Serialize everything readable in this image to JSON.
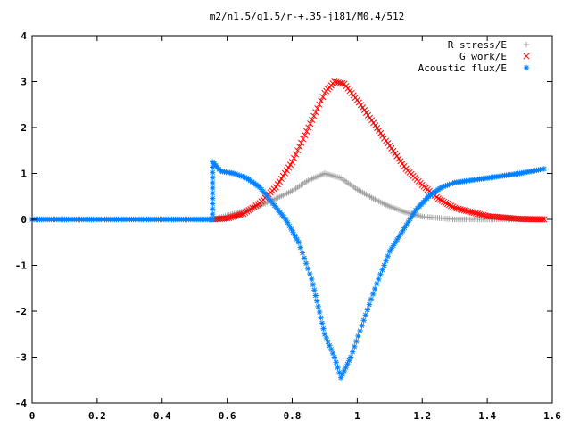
{
  "chart_data": {
    "type": "scatter",
    "title": "m2/n1.5/q1.5/r-+.35-j181/M0.4/512",
    "xlabel": "",
    "ylabel": "",
    "xlim": [
      0,
      1.6
    ],
    "ylim": [
      -4,
      4
    ],
    "xticks": [
      "0",
      "0.2",
      "0.4",
      "0.6",
      "0.8",
      "1",
      "1.2",
      "1.4",
      "1.6"
    ],
    "yticks": [
      "4",
      "3",
      "2",
      "1",
      "0",
      "-1",
      "-2",
      "-3",
      "-4"
    ],
    "grid": false,
    "legend_position": "top-right",
    "series": [
      {
        "name": "R stress/E",
        "marker": "plus",
        "color": "#a0a0a0",
        "x_range": [
          0.555,
          1.575
        ],
        "peak": {
          "x": 0.9,
          "y": 1.0
        },
        "description_points": [
          [
            0.555,
            0.0
          ],
          [
            0.6,
            0.08
          ],
          [
            0.65,
            0.18
          ],
          [
            0.7,
            0.3
          ],
          [
            0.75,
            0.45
          ],
          [
            0.8,
            0.62
          ],
          [
            0.85,
            0.85
          ],
          [
            0.9,
            1.0
          ],
          [
            0.95,
            0.9
          ],
          [
            1.0,
            0.65
          ],
          [
            1.05,
            0.45
          ],
          [
            1.1,
            0.28
          ],
          [
            1.15,
            0.15
          ],
          [
            1.2,
            0.06
          ],
          [
            1.3,
            0.0
          ],
          [
            1.4,
            0.0
          ],
          [
            1.575,
            0.0
          ]
        ]
      },
      {
        "name": "G work/E",
        "marker": "cross",
        "color": "#ff0000",
        "x_range": [
          0.555,
          1.575
        ],
        "peak": {
          "x": 0.93,
          "y": 3.0
        },
        "description_points": [
          [
            0.555,
            0.0
          ],
          [
            0.6,
            0.02
          ],
          [
            0.65,
            0.12
          ],
          [
            0.7,
            0.35
          ],
          [
            0.75,
            0.7
          ],
          [
            0.8,
            1.25
          ],
          [
            0.85,
            2.0
          ],
          [
            0.9,
            2.75
          ],
          [
            0.93,
            3.0
          ],
          [
            0.96,
            2.95
          ],
          [
            1.0,
            2.6
          ],
          [
            1.05,
            2.1
          ],
          [
            1.1,
            1.6
          ],
          [
            1.15,
            1.1
          ],
          [
            1.2,
            0.75
          ],
          [
            1.25,
            0.45
          ],
          [
            1.3,
            0.25
          ],
          [
            1.4,
            0.07
          ],
          [
            1.5,
            0.01
          ],
          [
            1.575,
            0.0
          ]
        ]
      },
      {
        "name": "Acoustic flux/E",
        "marker": "star",
        "color": "#0080ff",
        "x_range": [
          0.0,
          1.575
        ],
        "trough": {
          "x": 0.95,
          "y": -3.45
        },
        "description_points": [
          [
            0.0,
            0.0
          ],
          [
            0.1,
            0.0
          ],
          [
            0.2,
            0.0
          ],
          [
            0.3,
            0.0
          ],
          [
            0.4,
            0.0
          ],
          [
            0.5,
            0.0
          ],
          [
            0.555,
            0.0
          ],
          [
            0.555,
            1.25
          ],
          [
            0.58,
            1.05
          ],
          [
            0.62,
            1.0
          ],
          [
            0.66,
            0.9
          ],
          [
            0.7,
            0.7
          ],
          [
            0.74,
            0.35
          ],
          [
            0.78,
            0.0
          ],
          [
            0.82,
            -0.5
          ],
          [
            0.86,
            -1.3
          ],
          [
            0.9,
            -2.5
          ],
          [
            0.93,
            -3.0
          ],
          [
            0.95,
            -3.45
          ],
          [
            0.98,
            -3.0
          ],
          [
            1.02,
            -2.2
          ],
          [
            1.06,
            -1.4
          ],
          [
            1.1,
            -0.7
          ],
          [
            1.14,
            -0.25
          ],
          [
            1.18,
            0.2
          ],
          [
            1.22,
            0.5
          ],
          [
            1.26,
            0.7
          ],
          [
            1.3,
            0.8
          ],
          [
            1.4,
            0.9
          ],
          [
            1.5,
            1.0
          ],
          [
            1.575,
            1.1
          ]
        ]
      }
    ]
  }
}
